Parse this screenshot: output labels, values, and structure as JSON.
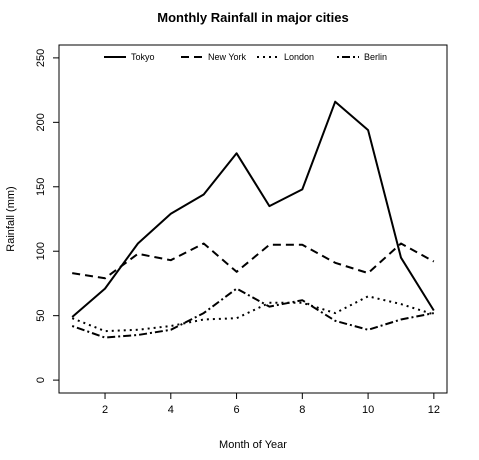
{
  "chart_data": {
    "type": "line",
    "title": "Monthly Rainfall in major cities",
    "xlabel": "Month of Year",
    "ylabel": "Rainfall (mm)",
    "xlim": [
      0.6,
      12.4
    ],
    "ylim": [
      -10,
      260
    ],
    "xticks": [
      2,
      4,
      6,
      8,
      10,
      12
    ],
    "yticks": [
      0,
      50,
      100,
      150,
      200,
      250
    ],
    "legend_position": "top",
    "x": [
      1,
      2,
      3,
      4,
      5,
      6,
      7,
      8,
      9,
      10,
      11,
      12
    ],
    "series": [
      {
        "name": "Tokyo",
        "dash": "solid",
        "values": [
          49,
          71,
          106,
          129,
          144,
          176,
          135,
          148,
          216,
          194,
          95,
          54
        ]
      },
      {
        "name": "New York",
        "dash": "dashed",
        "values": [
          83,
          79,
          98,
          93,
          106,
          84,
          105,
          105,
          91,
          83,
          106,
          92
        ]
      },
      {
        "name": "London",
        "dash": "dotted",
        "values": [
          48,
          38,
          39,
          42,
          47,
          48,
          60,
          60,
          52,
          65,
          59,
          51
        ]
      },
      {
        "name": "Berlin",
        "dash": "dotdash",
        "values": [
          42,
          33,
          35,
          39,
          52,
          71,
          57,
          62,
          46,
          39,
          47,
          52
        ]
      }
    ]
  }
}
